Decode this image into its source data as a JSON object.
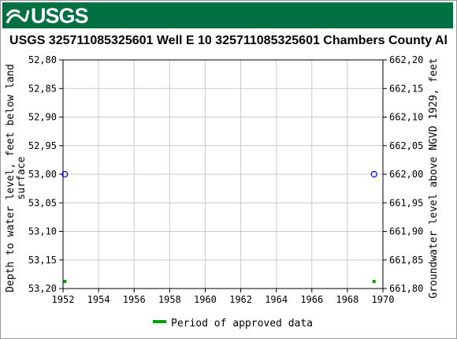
{
  "header": {
    "logo_text": "USGS"
  },
  "chart_data": {
    "type": "scatter",
    "title": "USGS 325711085325601 Well  E 10  325711085325601 Chambers County Al",
    "ylabel_left": "Depth to water level, feet below land surface",
    "ylabel_right": "Groundwater level above NGVD 1929, feet",
    "xlim": [
      1952,
      1970
    ],
    "ylim_left": [
      52.8,
      53.2
    ],
    "ylim_right": [
      662.2,
      661.8
    ],
    "x_ticks": [
      "1952",
      "1954",
      "1956",
      "1958",
      "1960",
      "1962",
      "1964",
      "1966",
      "1968",
      "1970"
    ],
    "y_ticks_left": [
      "52,80",
      "52,85",
      "52,90",
      "52,95",
      "53,00",
      "53,05",
      "53,10",
      "53,15",
      "53,20"
    ],
    "y_ticks_right": [
      "662,20",
      "662,15",
      "662,10",
      "662,05",
      "662,00",
      "661,95",
      "661,90",
      "661,85",
      "661,80"
    ],
    "series": [
      {
        "name": "",
        "x": [
          1952.1,
          1969.5
        ],
        "y": [
          53.0,
          53.0
        ],
        "color": "#0000ff",
        "marker": "open-circle"
      },
      {
        "name": "Period of approved data",
        "x": [
          1952.1,
          1969.5
        ],
        "color": "#00a000",
        "marker": "square"
      }
    ],
    "grid": true,
    "legend": "bottom-center"
  }
}
